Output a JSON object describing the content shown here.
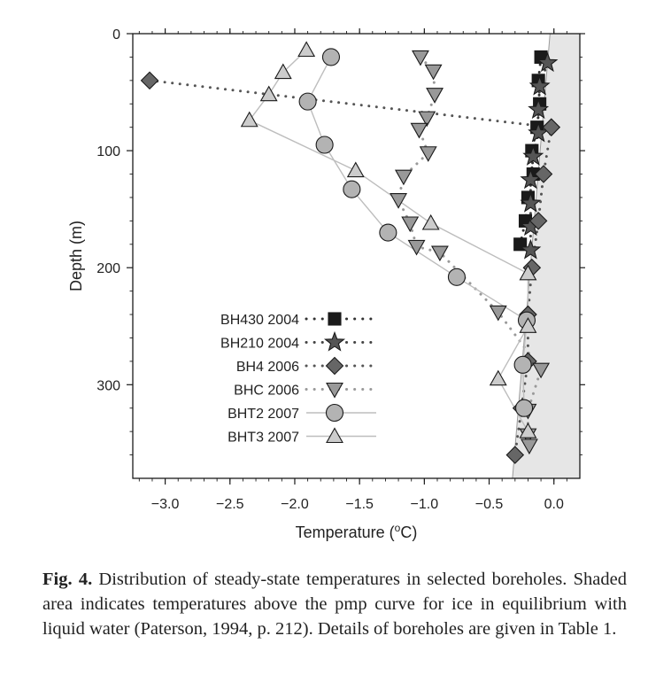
{
  "chart_data": {
    "type": "scatter",
    "xlabel": "Temperature (",
    "xlabel_sup": "o",
    "xlabel_unit": "C)",
    "ylabel": "Depth (m)",
    "xlim": [
      -3.25,
      0.2
    ],
    "ylim": [
      380,
      0
    ],
    "y_inverted": true,
    "x_ticks": [
      -3.0,
      -2.5,
      -2.0,
      -1.5,
      -1.0,
      -0.5,
      0.0
    ],
    "x_tick_labels": [
      "−3.0",
      "−2.5",
      "−2.0",
      "−1.5",
      "−1.0",
      "−0.5",
      "0.0"
    ],
    "y_ticks": [
      0,
      100,
      200,
      300
    ],
    "y_tick_labels": [
      "0",
      "100",
      "200",
      "300"
    ],
    "grid": false,
    "legend_position": "lower-left",
    "shaded_region": {
      "description": "temperatures above the pmp curve",
      "boundary": [
        [
          -0.03,
          0
        ],
        [
          -0.32,
          380
        ]
      ],
      "color": "#e6e6e6"
    },
    "series": [
      {
        "name": "BH430 2004",
        "marker": "square",
        "line": "dotted",
        "color": "#1a1a1a",
        "line_color": "#333333",
        "points": [
          [
            -0.1,
            20
          ],
          [
            -0.12,
            40
          ],
          [
            -0.11,
            60
          ],
          [
            -0.13,
            80
          ],
          [
            -0.17,
            100
          ],
          [
            -0.16,
            120
          ],
          [
            -0.2,
            140
          ],
          [
            -0.22,
            160
          ],
          [
            -0.26,
            180
          ]
        ]
      },
      {
        "name": "BH210 2004",
        "marker": "star",
        "line": "dotted",
        "color": "#555555",
        "line_color": "#444444",
        "points": [
          [
            -0.05,
            25
          ],
          [
            -0.11,
            45
          ],
          [
            -0.12,
            65
          ],
          [
            -0.12,
            85
          ],
          [
            -0.16,
            105
          ],
          [
            -0.18,
            125
          ],
          [
            -0.18,
            145
          ],
          [
            -0.18,
            165
          ],
          [
            -0.18,
            185
          ]
        ]
      },
      {
        "name": "BH4 2006",
        "marker": "diamond",
        "line": "dotted",
        "color": "#666666",
        "line_color": "#555555",
        "points": [
          [
            -3.12,
            40
          ],
          [
            -0.02,
            80
          ],
          [
            -0.08,
            120
          ],
          [
            -0.12,
            160
          ],
          [
            -0.17,
            200
          ],
          [
            -0.2,
            240
          ],
          [
            -0.2,
            280
          ],
          [
            -0.25,
            320
          ],
          [
            -0.3,
            360
          ]
        ]
      },
      {
        "name": "BHC 2006",
        "marker": "triangle-down",
        "line": "dotted",
        "color": "#999999",
        "line_color": "#999999",
        "points": [
          [
            -1.03,
            20
          ],
          [
            -0.93,
            32
          ],
          [
            -0.92,
            52
          ],
          [
            -0.98,
            72
          ],
          [
            -1.04,
            82
          ],
          [
            -0.97,
            102
          ],
          [
            -1.16,
            122
          ],
          [
            -1.2,
            142
          ],
          [
            -1.11,
            162
          ],
          [
            -1.06,
            182
          ],
          [
            -0.88,
            187
          ],
          [
            -0.43,
            238
          ],
          [
            -0.1,
            287
          ],
          [
            -0.2,
            322
          ],
          [
            -0.2,
            343
          ],
          [
            -0.19,
            352
          ]
        ]
      },
      {
        "name": "BHT2 2007",
        "marker": "circle",
        "line": "solid",
        "color": "#b3b3b3",
        "line_color": "#bdbdbd",
        "points": [
          [
            -1.72,
            20
          ],
          [
            -1.9,
            58
          ],
          [
            -1.77,
            95
          ],
          [
            -1.56,
            133
          ],
          [
            -1.28,
            170
          ],
          [
            -0.75,
            208
          ],
          [
            -0.21,
            245
          ],
          [
            -0.24,
            283
          ],
          [
            -0.23,
            320
          ]
        ]
      },
      {
        "name": "BHT3 2007",
        "marker": "triangle-up",
        "line": "solid",
        "color": "#cccccc",
        "line_color": "#bdbdbd",
        "points": [
          [
            -1.91,
            14
          ],
          [
            -2.09,
            33
          ],
          [
            -2.2,
            52
          ],
          [
            -2.35,
            74
          ],
          [
            -1.53,
            117
          ],
          [
            -0.95,
            162
          ],
          [
            -0.2,
            205
          ],
          [
            -0.2,
            250
          ],
          [
            -0.43,
            295
          ],
          [
            -0.2,
            340
          ]
        ]
      }
    ]
  },
  "caption": {
    "fig_label": "Fig. 4.",
    "text": " Distribution of steady-state temperatures in selected boreholes. Shaded area indicates temperatures above the pmp curve for ice in equilibrium with liquid water (Paterson, 1994, p. 212). Details of boreholes are given in Table 1."
  }
}
